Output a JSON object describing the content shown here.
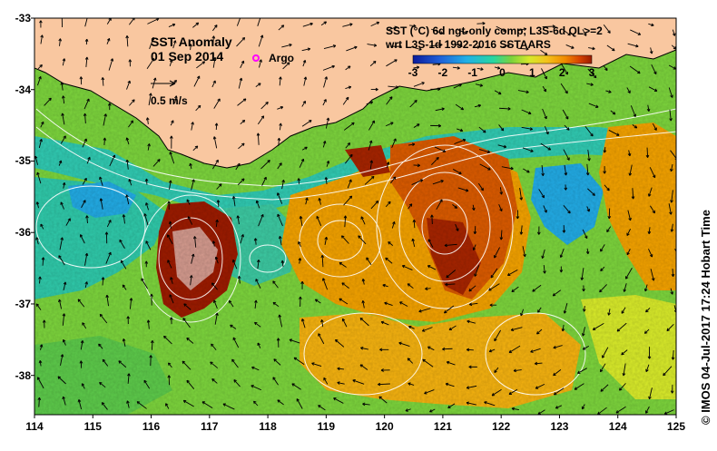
{
  "map": {
    "title": "SST Anomaly",
    "date": "01 Sep 2014",
    "argo_legend": "Argo",
    "scale_label": "0.5 m/s",
    "product_line1": "SST (°C) 6d ngt-only comp, L3S-6d QL>=2",
    "product_line2": "wrt L3S-1d 1992-2016 SSTAARS",
    "credit": "© IMOS 04-Jul-2017 17:24 Hobart Time",
    "lat_ticks": [
      "-33",
      "-34",
      "-35",
      "-36",
      "-37",
      "-38"
    ],
    "lon_ticks": [
      "114",
      "115",
      "116",
      "117",
      "118",
      "119",
      "120",
      "121",
      "122",
      "123",
      "124",
      "125"
    ],
    "colorbar_ticks": [
      "-3",
      "-2",
      "-1",
      "0",
      "1",
      "2",
      "3"
    ],
    "lat_range": [
      -38.55,
      -33
    ],
    "lon_range": [
      114,
      125
    ],
    "colorbar_range": [
      -3,
      3
    ],
    "colors": {
      "land": "#f9c7a0",
      "ocean_base": "#7bd23c",
      "warm": "#f0a000",
      "hot": "#9a1b00",
      "cold": "#2aa8e0",
      "teal": "#3cc7a0",
      "argo": "#ff00ff",
      "colorbar": [
        "#0a1a9c",
        "#1f5fd8",
        "#21b0e6",
        "#28d6a0",
        "#7bd23c",
        "#d6e82a",
        "#f4c21a",
        "#f08a00",
        "#d84400",
        "#9a1b00"
      ]
    }
  }
}
